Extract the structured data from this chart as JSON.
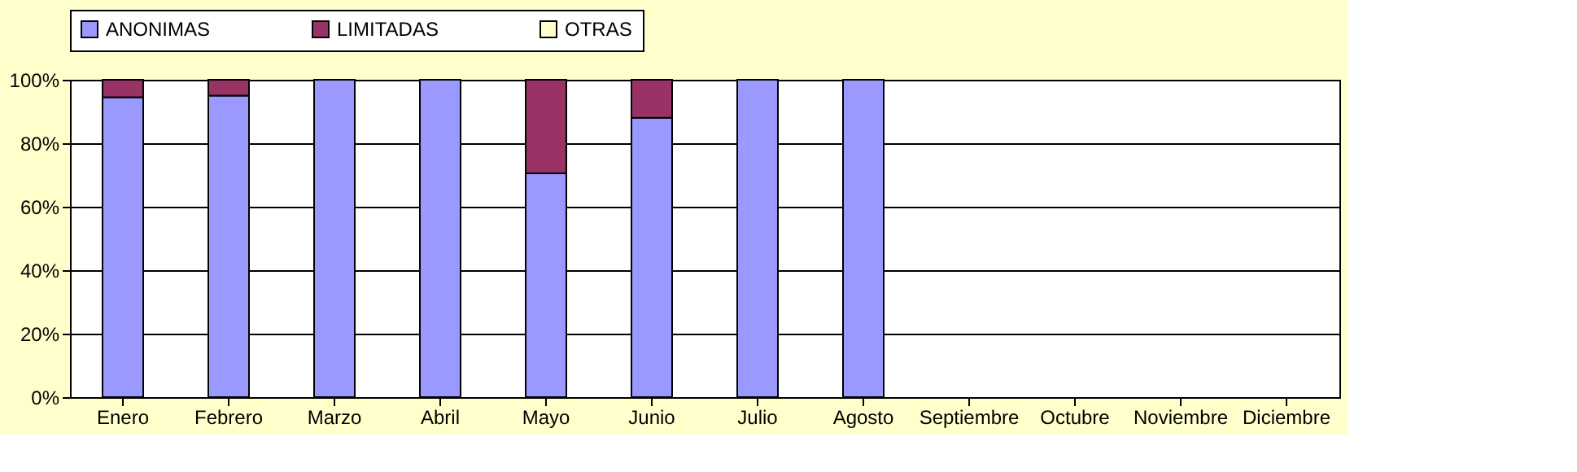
{
  "chart_data": {
    "type": "bar",
    "stacked": true,
    "categories": [
      "Enero",
      "Febrero",
      "Marzo",
      "Abril",
      "Mayo",
      "Junio",
      "Julio",
      "Agosto",
      "Septiembre",
      "Octubre",
      "Noviembre",
      "Diciembre"
    ],
    "series": [
      {
        "name": "ANONIMAS",
        "color": "#9999ff",
        "values": [
          94.5,
          95,
          100,
          100,
          70.5,
          88,
          100,
          100,
          null,
          null,
          null,
          null
        ]
      },
      {
        "name": "LIMITADAS",
        "color": "#993366",
        "values": [
          5.5,
          5,
          null,
          null,
          29.5,
          12,
          null,
          null,
          null,
          null,
          null,
          null
        ]
      },
      {
        "name": "OTRAS",
        "color": "#ffffcc",
        "values": [
          null,
          null,
          null,
          null,
          null,
          null,
          null,
          null,
          null,
          null,
          null,
          null
        ]
      }
    ],
    "ylim": [
      0,
      100
    ],
    "yticks": [
      {
        "value": 0,
        "label": "0%"
      },
      {
        "value": 20,
        "label": "20%"
      },
      {
        "value": 40,
        "label": "40%"
      },
      {
        "value": 60,
        "label": "60%"
      },
      {
        "value": 80,
        "label": "80%"
      },
      {
        "value": 100,
        "label": "100%"
      }
    ],
    "grid": "y",
    "legend": "top"
  }
}
